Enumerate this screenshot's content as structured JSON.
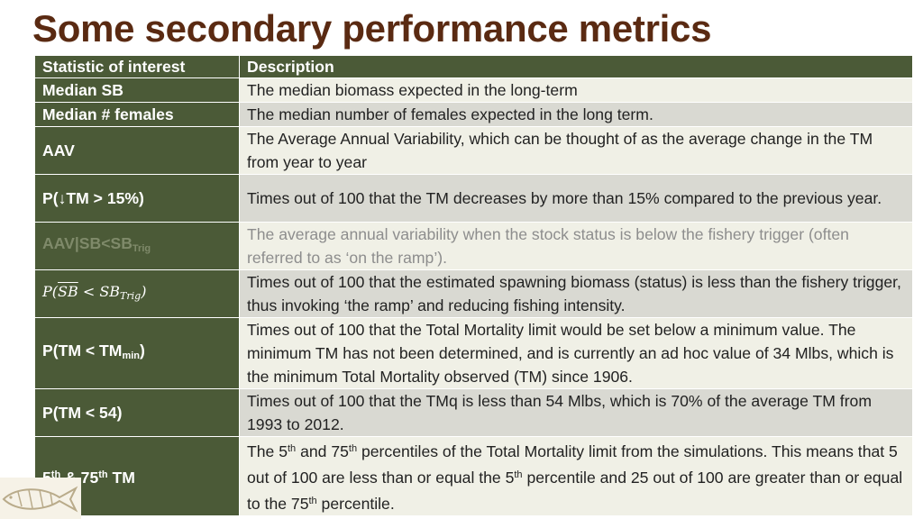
{
  "title": "Some secondary performance metrics",
  "headers": [
    "Statistic of interest",
    "Description"
  ],
  "rows": [
    {
      "statistic": "Median SB",
      "description": "The median biomass expected in the long-term"
    },
    {
      "statistic": "Median # females",
      "description": "The median number of females expected in the long term."
    },
    {
      "statistic": "AAV",
      "description": "The Average Annual Variability, which can be thought of as the average change in the TM from year to year"
    },
    {
      "statistic": "P(↓TM > 15%)",
      "description": "Times out of 100 that the TM decreases by more than 15% compared to the previous year."
    },
    {
      "statistic": {
        "main": "AAV|SB<SB",
        "sub": "Trig"
      },
      "description": "The average annual variability when the stock status is below the fishery trigger (often referred to as ‘on the ramp’)."
    },
    {
      "statistic": {
        "p": "P",
        "sb": "SB",
        "lt": " < ",
        "sb2": "SB",
        "sub": "Trig"
      },
      "description": "Times out of 100 that the estimated spawning biomass (status) is less than the fishery trigger, thus invoking ‘the ramp’ and reducing fishing intensity."
    },
    {
      "statistic": {
        "main": "P(TM < TM",
        "sub": "min",
        "end": ")"
      },
      "description": "Times out of 100 that the Total Mortality limit would be set below a minimum value. The minimum TM has not been determined, and is currently an ad hoc value of 34 Mlbs, which is the minimum Total Mortality observed (TM) since 1906."
    },
    {
      "statistic": "P(TM < 54)",
      "description": "Times out of 100 that the TMq is less than 54 Mlbs, which is 70% of the average TM from 1993 to 2012."
    },
    {
      "statistic": {
        "a": "5",
        "a_sup": "th",
        "b": " & 75",
        "b_sup": "th",
        "c": " TM"
      },
      "description": {
        "p1": "The 5",
        "s1": "th",
        "p2": " and 75",
        "s2": "th",
        "p3": " percentiles of the Total Mortality limit from the simulations. This means that 5 out of 100 are less than or equal the 5",
        "s3": "th",
        "p4": " percentile and 25 out of 100 are greater than or equal to the 75",
        "s4": "th",
        "p5": " percentile."
      }
    }
  ]
}
